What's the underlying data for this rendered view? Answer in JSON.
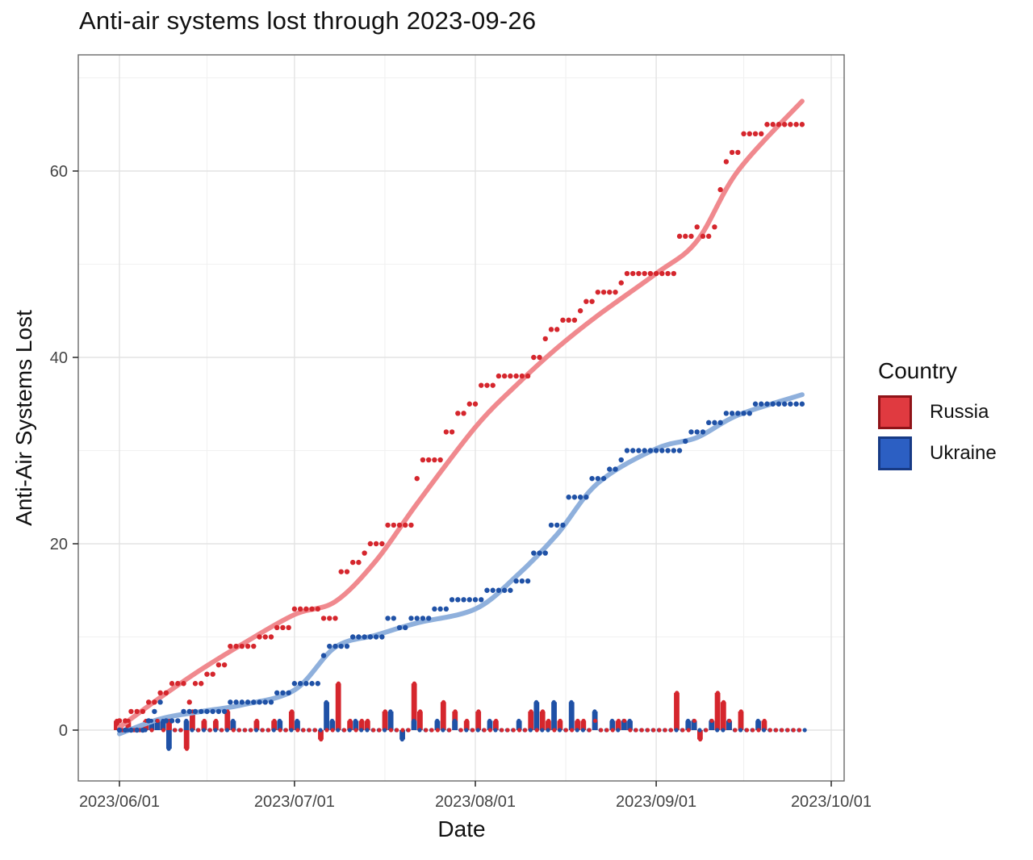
{
  "title": "Anti-air systems lost through 2023-09-26",
  "x_axis": {
    "label": "Date",
    "ticks": [
      "2023/06/01",
      "2023/07/01",
      "2023/08/01",
      "2023/09/01",
      "2023/10/01"
    ]
  },
  "y_axis": {
    "label": "Anti-Air Systems Lost",
    "ticks": [
      "0",
      "20",
      "40",
      "60"
    ]
  },
  "legend": {
    "title": "Country",
    "entries": [
      {
        "label": "Russia",
        "fill": "#E03A40",
        "border": "#8F1318"
      },
      {
        "label": "Ukraine",
        "fill": "#2C5FC3",
        "border": "#173A85"
      }
    ]
  },
  "colors": {
    "russia": "#D5262D",
    "russia_trend": "#F0898E",
    "ukraine": "#1F51A6",
    "ukraine_trend": "#8FB0DC",
    "grid_major": "#E3E3E3",
    "grid_minor": "#F1F1F1",
    "panel_border": "#6A6A6A",
    "tick_text": "#444444",
    "tick_mark": "#333333"
  },
  "chart_data": {
    "type": "scatter",
    "description": "Cumulative anti-air systems lost per country (dots), loess trend (thick line), daily change (bars); dotted row at zero = days with no change.",
    "title": "Anti-air systems lost through 2023-09-26",
    "xlabel": "Date",
    "ylabel": "Anti-Air Systems Lost",
    "x_start": "2023-06-01",
    "x_end": "2023-09-26",
    "xlim": [
      "2023-05-25",
      "2023-10-03"
    ],
    "ylim": [
      -5.5,
      72.5
    ],
    "y_major_ticks": [
      0,
      20,
      40,
      60
    ],
    "y_minor_ticks": [
      10,
      30,
      50,
      70
    ],
    "grid": "on",
    "legend_position": "right",
    "totals": {
      "Russia": 65,
      "Ukraine": 35
    },
    "series": [
      {
        "name": "Russia",
        "daily_events": [
          [
            "2023-06-01",
            1
          ],
          [
            "2023-06-03",
            1
          ],
          [
            "2023-06-06",
            1
          ],
          [
            "2023-06-08",
            1
          ],
          [
            "2023-06-10",
            1
          ],
          [
            "2023-06-13",
            -2
          ],
          [
            "2023-06-14",
            2
          ],
          [
            "2023-06-16",
            1
          ],
          [
            "2023-06-18",
            1
          ],
          [
            "2023-06-20",
            2
          ],
          [
            "2023-06-25",
            1
          ],
          [
            "2023-06-28",
            1
          ],
          [
            "2023-07-01",
            2
          ],
          [
            "2023-07-06",
            -1
          ],
          [
            "2023-07-09",
            5
          ],
          [
            "2023-07-11",
            1
          ],
          [
            "2023-07-13",
            1
          ],
          [
            "2023-07-14",
            1
          ],
          [
            "2023-07-17",
            2
          ],
          [
            "2023-07-22",
            5
          ],
          [
            "2023-07-23",
            2
          ],
          [
            "2023-07-27",
            3
          ],
          [
            "2023-07-29",
            2
          ],
          [
            "2023-07-31",
            1
          ],
          [
            "2023-08-02",
            2
          ],
          [
            "2023-08-05",
            1
          ],
          [
            "2023-08-11",
            2
          ],
          [
            "2023-08-13",
            2
          ],
          [
            "2023-08-14",
            1
          ],
          [
            "2023-08-16",
            1
          ],
          [
            "2023-08-19",
            1
          ],
          [
            "2023-08-20",
            1
          ],
          [
            "2023-08-22",
            1
          ],
          [
            "2023-08-26",
            1
          ],
          [
            "2023-08-27",
            1
          ],
          [
            "2023-09-05",
            4
          ],
          [
            "2023-09-08",
            1
          ],
          [
            "2023-09-09",
            -1
          ],
          [
            "2023-09-11",
            1
          ],
          [
            "2023-09-12",
            4
          ],
          [
            "2023-09-13",
            3
          ],
          [
            "2023-09-14",
            1
          ],
          [
            "2023-09-16",
            2
          ],
          [
            "2023-09-20",
            1
          ]
        ],
        "trend": [
          [
            0,
            0.3
          ],
          [
            7,
            3.5
          ],
          [
            14,
            6.5
          ],
          [
            21,
            9.2
          ],
          [
            30,
            12.4
          ],
          [
            37,
            13.8
          ],
          [
            44,
            18.2
          ],
          [
            51,
            24.3
          ],
          [
            61,
            32.5
          ],
          [
            68,
            37
          ],
          [
            75,
            41
          ],
          [
            82,
            44.5
          ],
          [
            92,
            49
          ],
          [
            99,
            52.5
          ],
          [
            106,
            60
          ],
          [
            117,
            67.5
          ]
        ]
      },
      {
        "name": "Ukraine",
        "daily_events": [
          [
            "2023-06-06",
            1
          ],
          [
            "2023-06-07",
            1
          ],
          [
            "2023-06-08",
            1
          ],
          [
            "2023-06-09",
            -2
          ],
          [
            "2023-06-12",
            1
          ],
          [
            "2023-06-20",
            1
          ],
          [
            "2023-06-28",
            1
          ],
          [
            "2023-07-01",
            1
          ],
          [
            "2023-07-06",
            3
          ],
          [
            "2023-07-07",
            1
          ],
          [
            "2023-07-11",
            1
          ],
          [
            "2023-07-17",
            2
          ],
          [
            "2023-07-19",
            -1
          ],
          [
            "2023-07-21",
            1
          ],
          [
            "2023-07-25",
            1
          ],
          [
            "2023-07-28",
            1
          ],
          [
            "2023-08-03",
            1
          ],
          [
            "2023-08-08",
            1
          ],
          [
            "2023-08-11",
            3
          ],
          [
            "2023-08-14",
            3
          ],
          [
            "2023-08-17",
            3
          ],
          [
            "2023-08-21",
            2
          ],
          [
            "2023-08-24",
            1
          ],
          [
            "2023-08-26",
            1
          ],
          [
            "2023-08-27",
            1
          ],
          [
            "2023-09-06",
            1
          ],
          [
            "2023-09-07",
            1
          ],
          [
            "2023-09-10",
            1
          ],
          [
            "2023-09-13",
            1
          ],
          [
            "2023-09-18",
            1
          ]
        ],
        "trend": [
          [
            0,
            -0.4
          ],
          [
            7,
            1.2
          ],
          [
            14,
            2.0
          ],
          [
            21,
            2.7
          ],
          [
            30,
            4.3
          ],
          [
            37,
            8.9
          ],
          [
            44,
            10.2
          ],
          [
            51,
            11.5
          ],
          [
            61,
            13.0
          ],
          [
            68,
            16.5
          ],
          [
            75,
            21
          ],
          [
            82,
            26.5
          ],
          [
            92,
            30.2
          ],
          [
            99,
            31.4
          ],
          [
            106,
            33.8
          ],
          [
            117,
            36
          ]
        ]
      }
    ]
  }
}
